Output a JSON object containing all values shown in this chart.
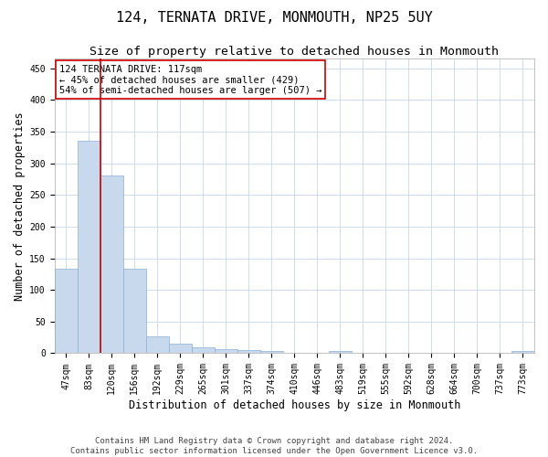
{
  "title": "124, TERNATA DRIVE, MONMOUTH, NP25 5UY",
  "subtitle": "Size of property relative to detached houses in Monmouth",
  "xlabel": "Distribution of detached houses by size in Monmouth",
  "ylabel": "Number of detached properties",
  "bar_color": "#c8d9ee",
  "bar_edge_color": "#8aafd4",
  "highlight_line_color": "#cc0000",
  "annotation_line1": "124 TERNATA DRIVE: 117sqm",
  "annotation_line2": "← 45% of detached houses are smaller (429)",
  "annotation_line3": "54% of semi-detached houses are larger (507) →",
  "categories": [
    "47sqm",
    "83sqm",
    "120sqm",
    "156sqm",
    "192sqm",
    "229sqm",
    "265sqm",
    "301sqm",
    "337sqm",
    "374sqm",
    "410sqm",
    "446sqm",
    "483sqm",
    "519sqm",
    "555sqm",
    "592sqm",
    "628sqm",
    "664sqm",
    "700sqm",
    "737sqm",
    "773sqm"
  ],
  "values": [
    134,
    335,
    281,
    133,
    26,
    15,
    10,
    6,
    5,
    4,
    0,
    0,
    4,
    0,
    0,
    0,
    0,
    0,
    0,
    0,
    4
  ],
  "ylim": [
    0,
    465
  ],
  "yticks": [
    0,
    50,
    100,
    150,
    200,
    250,
    300,
    350,
    400,
    450
  ],
  "footer_text": "Contains HM Land Registry data © Crown copyright and database right 2024.\nContains public sector information licensed under the Open Government Licence v3.0.",
  "bg_color": "#ffffff",
  "grid_color": "#c8d8e8",
  "title_fontsize": 11,
  "subtitle_fontsize": 9.5,
  "axis_label_fontsize": 8.5,
  "tick_fontsize": 7,
  "annotation_fontsize": 7.5,
  "footer_fontsize": 6.5
}
